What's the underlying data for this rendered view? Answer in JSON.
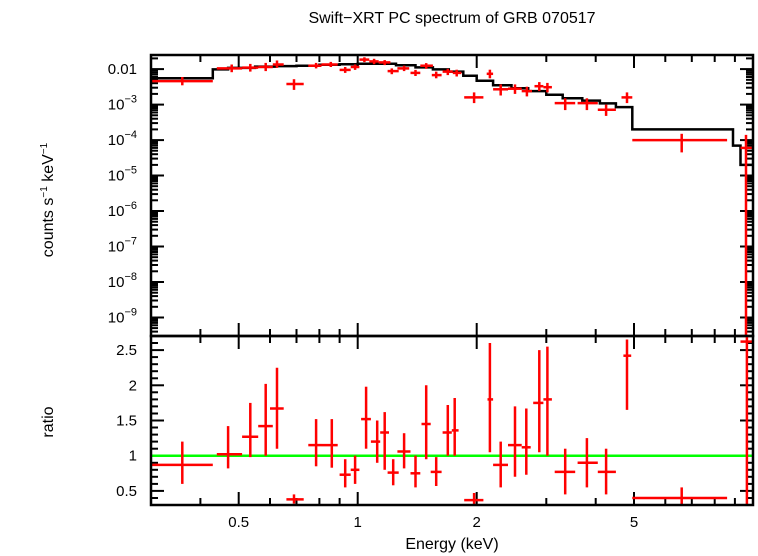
{
  "chart_data": {
    "type": "scatter",
    "title": "Swift−XRT PC spectrum of GRB 070517",
    "xlabel": "Energy (keV)",
    "x_scale": "log",
    "xlim": [
      0.3,
      10
    ],
    "x_ticks": [
      {
        "value": 0.5,
        "label": "0.5"
      },
      {
        "value": 1,
        "label": "1"
      },
      {
        "value": 2,
        "label": "2"
      },
      {
        "value": 5,
        "label": "5"
      }
    ],
    "colors": {
      "data": "#ff0000",
      "model": "#000000",
      "unity_line": "#00ff00"
    },
    "top_panel": {
      "ylabel_base": "counts s",
      "ylabel_sup1": "−1",
      "ylabel_mid": " keV",
      "ylabel_sup2": "−1",
      "y_scale": "log",
      "ylim": [
        3e-10,
        0.025
      ],
      "y_ticks": [
        {
          "value": 0.01,
          "base": "0.01",
          "sup": ""
        },
        {
          "value": 0.001,
          "base": "10",
          "sup": "−3"
        },
        {
          "value": 0.0001,
          "base": "10",
          "sup": "−4"
        },
        {
          "value": 1e-05,
          "base": "10",
          "sup": "−5"
        },
        {
          "value": 1e-06,
          "base": "10",
          "sup": "−6"
        },
        {
          "value": 1e-07,
          "base": "10",
          "sup": "−7"
        },
        {
          "value": 1e-08,
          "base": "10",
          "sup": "−8"
        },
        {
          "value": 1e-09,
          "base": "10",
          "sup": "−9"
        }
      ],
      "data": [
        {
          "x": 0.36,
          "xlo": 0.3,
          "xhi": 0.43,
          "y": 0.0046,
          "ylo": 0.0035,
          "yhi": 0.006
        },
        {
          "x": 0.48,
          "xlo": 0.44,
          "xhi": 0.51,
          "y": 0.0105,
          "ylo": 0.0082,
          "yhi": 0.0135
        },
        {
          "x": 0.535,
          "xlo": 0.51,
          "xhi": 0.56,
          "y": 0.011,
          "ylo": 0.0085,
          "yhi": 0.014
        },
        {
          "x": 0.585,
          "xlo": 0.56,
          "xhi": 0.61,
          "y": 0.0115,
          "ylo": 0.0088,
          "yhi": 0.015
        },
        {
          "x": 0.625,
          "xlo": 0.61,
          "xhi": 0.65,
          "y": 0.0135,
          "ylo": 0.0108,
          "yhi": 0.0175
        },
        {
          "x": 0.69,
          "xlo": 0.66,
          "xhi": 0.73,
          "y": 0.0038,
          "ylo": 0.0026,
          "yhi": 0.0052
        },
        {
          "x": 0.785,
          "xlo": 0.75,
          "xhi": 0.81,
          "y": 0.0125,
          "ylo": 0.0105,
          "yhi": 0.015
        },
        {
          "x": 0.855,
          "xlo": 0.81,
          "xhi": 0.89,
          "y": 0.0135,
          "ylo": 0.0115,
          "yhi": 0.016
        },
        {
          "x": 0.93,
          "xlo": 0.9,
          "xhi": 0.96,
          "y": 0.0095,
          "ylo": 0.0078,
          "yhi": 0.0115
        },
        {
          "x": 0.985,
          "xlo": 0.96,
          "xhi": 1.01,
          "y": 0.0115,
          "ylo": 0.0095,
          "yhi": 0.0135
        },
        {
          "x": 1.04,
          "xlo": 1.01,
          "xhi": 1.07,
          "y": 0.0185,
          "ylo": 0.0158,
          "yhi": 0.0215
        },
        {
          "x": 1.1,
          "xlo": 1.07,
          "xhi": 1.13,
          "y": 0.0165,
          "ylo": 0.0138,
          "yhi": 0.0195
        },
        {
          "x": 1.17,
          "xlo": 1.13,
          "xhi": 1.21,
          "y": 0.0155,
          "ylo": 0.013,
          "yhi": 0.018
        },
        {
          "x": 1.22,
          "xlo": 1.19,
          "xhi": 1.27,
          "y": 0.0088,
          "ylo": 0.0072,
          "yhi": 0.0105
        },
        {
          "x": 1.31,
          "xlo": 1.26,
          "xhi": 1.35,
          "y": 0.0105,
          "ylo": 0.0088,
          "yhi": 0.0125
        },
        {
          "x": 1.4,
          "xlo": 1.36,
          "xhi": 1.44,
          "y": 0.0078,
          "ylo": 0.0064,
          "yhi": 0.0095
        },
        {
          "x": 1.49,
          "xlo": 1.44,
          "xhi": 1.55,
          "y": 0.0125,
          "ylo": 0.0102,
          "yhi": 0.0148
        },
        {
          "x": 1.58,
          "xlo": 1.54,
          "xhi": 1.63,
          "y": 0.0068,
          "ylo": 0.0055,
          "yhi": 0.0085
        },
        {
          "x": 1.69,
          "xlo": 1.64,
          "xhi": 1.74,
          "y": 0.0085,
          "ylo": 0.0068,
          "yhi": 0.0102
        },
        {
          "x": 1.78,
          "xlo": 1.74,
          "xhi": 1.83,
          "y": 0.0078,
          "ylo": 0.0062,
          "yhi": 0.0096
        },
        {
          "x": 1.97,
          "xlo": 1.86,
          "xhi": 2.08,
          "y": 0.0016,
          "ylo": 0.0011,
          "yhi": 0.0022
        },
        {
          "x": 2.16,
          "xlo": 2.12,
          "xhi": 2.2,
          "y": 0.0074,
          "ylo": 0.0055,
          "yhi": 0.0096
        },
        {
          "x": 2.3,
          "xlo": 2.2,
          "xhi": 2.4,
          "y": 0.0027,
          "ylo": 0.0018,
          "yhi": 0.0037
        },
        {
          "x": 2.5,
          "xlo": 2.4,
          "xhi": 2.6,
          "y": 0.0028,
          "ylo": 0.002,
          "yhi": 0.0037
        },
        {
          "x": 2.68,
          "xlo": 2.6,
          "xhi": 2.76,
          "y": 0.0024,
          "ylo": 0.0017,
          "yhi": 0.0032
        },
        {
          "x": 2.88,
          "xlo": 2.8,
          "xhi": 2.95,
          "y": 0.0033,
          "ylo": 0.0024,
          "yhi": 0.0043
        },
        {
          "x": 3.02,
          "xlo": 2.95,
          "xhi": 3.1,
          "y": 0.0031,
          "ylo": 0.0022,
          "yhi": 0.0041
        },
        {
          "x": 3.35,
          "xlo": 3.15,
          "xhi": 3.55,
          "y": 0.0011,
          "ylo": 0.0007,
          "yhi": 0.0015
        },
        {
          "x": 3.8,
          "xlo": 3.6,
          "xhi": 4.05,
          "y": 0.0011,
          "ylo": 0.0007,
          "yhi": 0.0015
        },
        {
          "x": 4.25,
          "xlo": 4.05,
          "xhi": 4.5,
          "y": 0.00072,
          "ylo": 0.00048,
          "yhi": 0.001
        },
        {
          "x": 4.8,
          "xlo": 4.65,
          "xhi": 4.95,
          "y": 0.0016,
          "ylo": 0.0011,
          "yhi": 0.0022
        },
        {
          "x": 6.6,
          "xlo": 4.95,
          "xhi": 8.6,
          "y": 0.0001,
          "ylo": 4.5e-05,
          "yhi": 0.00015
        },
        {
          "x": 9.6,
          "xlo": 9.3,
          "xhi": 10,
          "y": 6e-05,
          "ylo": 1e-10,
          "yhi": 0.00014
        }
      ],
      "model": {
        "edges": [
          0.3,
          0.43,
          0.47,
          0.55,
          0.62,
          0.7,
          0.8,
          0.9,
          1.0,
          1.1,
          1.25,
          1.4,
          1.55,
          1.7,
          1.85,
          2.0,
          2.2,
          2.45,
          2.7,
          3.0,
          3.3,
          3.7,
          4.1,
          4.5,
          4.95,
          8.9,
          9.3,
          10
        ],
        "values": [
          0.0055,
          0.0098,
          0.0108,
          0.0118,
          0.0122,
          0.0125,
          0.0132,
          0.0138,
          0.0142,
          0.0142,
          0.0128,
          0.0112,
          0.0098,
          0.0085,
          0.0065,
          0.0047,
          0.0035,
          0.0029,
          0.0024,
          0.0019,
          0.0015,
          0.0013,
          0.00108,
          0.00085,
          0.0002,
          7e-05,
          2e-05
        ]
      }
    },
    "bottom_panel": {
      "ylabel": "ratio",
      "y_scale": "linear",
      "ylim": [
        0.3,
        2.7
      ],
      "y_ticks": [
        {
          "value": 0.5,
          "label": "0.5"
        },
        {
          "value": 1,
          "label": "1"
        },
        {
          "value": 1.5,
          "label": "1.5"
        },
        {
          "value": 2,
          "label": "2"
        },
        {
          "value": 2.5,
          "label": "2.5"
        }
      ],
      "unity_value": 1,
      "data": [
        {
          "x": 0.36,
          "xlo": 0.3,
          "xhi": 0.43,
          "y": 0.87,
          "ylo": 0.6,
          "yhi": 1.2
        },
        {
          "x": 0.47,
          "xlo": 0.44,
          "xhi": 0.51,
          "y": 1.02,
          "ylo": 0.82,
          "yhi": 1.42
        },
        {
          "x": 0.535,
          "xlo": 0.51,
          "xhi": 0.56,
          "y": 1.27,
          "ylo": 0.98,
          "yhi": 1.75
        },
        {
          "x": 0.585,
          "xlo": 0.56,
          "xhi": 0.61,
          "y": 1.42,
          "ylo": 1.0,
          "yhi": 2.02
        },
        {
          "x": 0.625,
          "xlo": 0.6,
          "xhi": 0.65,
          "y": 1.67,
          "ylo": 1.1,
          "yhi": 2.25
        },
        {
          "x": 0.69,
          "xlo": 0.66,
          "xhi": 0.73,
          "y": 0.38,
          "ylo": 0.32,
          "yhi": 0.45
        },
        {
          "x": 0.785,
          "xlo": 0.75,
          "xhi": 0.81,
          "y": 1.15,
          "ylo": 0.85,
          "yhi": 1.52
        },
        {
          "x": 0.86,
          "xlo": 0.81,
          "xhi": 0.89,
          "y": 1.15,
          "ylo": 0.83,
          "yhi": 1.52
        },
        {
          "x": 0.93,
          "xlo": 0.9,
          "xhi": 0.96,
          "y": 0.73,
          "ylo": 0.55,
          "yhi": 0.95
        },
        {
          "x": 0.985,
          "xlo": 0.96,
          "xhi": 1.01,
          "y": 0.8,
          "ylo": 0.6,
          "yhi": 1.0
        },
        {
          "x": 1.05,
          "xlo": 1.02,
          "xhi": 1.08,
          "y": 1.52,
          "ylo": 1.1,
          "yhi": 1.98
        },
        {
          "x": 1.12,
          "xlo": 1.08,
          "xhi": 1.14,
          "y": 1.2,
          "ylo": 0.9,
          "yhi": 1.5
        },
        {
          "x": 1.17,
          "xlo": 1.14,
          "xhi": 1.2,
          "y": 1.33,
          "ylo": 0.8,
          "yhi": 1.62
        },
        {
          "x": 1.23,
          "xlo": 1.19,
          "xhi": 1.27,
          "y": 0.76,
          "ylo": 0.58,
          "yhi": 0.95
        },
        {
          "x": 1.31,
          "xlo": 1.26,
          "xhi": 1.36,
          "y": 1.06,
          "ylo": 0.82,
          "yhi": 1.32
        },
        {
          "x": 1.4,
          "xlo": 1.36,
          "xhi": 1.44,
          "y": 0.75,
          "ylo": 0.55,
          "yhi": 1.0
        },
        {
          "x": 1.49,
          "xlo": 1.45,
          "xhi": 1.53,
          "y": 1.45,
          "ylo": 0.95,
          "yhi": 2.0
        },
        {
          "x": 1.58,
          "xlo": 1.53,
          "xhi": 1.63,
          "y": 0.77,
          "ylo": 0.57,
          "yhi": 0.98
        },
        {
          "x": 1.69,
          "xlo": 1.64,
          "xhi": 1.73,
          "y": 1.33,
          "ylo": 1.0,
          "yhi": 1.72
        },
        {
          "x": 1.76,
          "xlo": 1.73,
          "xhi": 1.8,
          "y": 1.36,
          "ylo": 1.0,
          "yhi": 1.82
        },
        {
          "x": 1.97,
          "xlo": 1.86,
          "xhi": 2.08,
          "y": 0.37,
          "ylo": 0.3,
          "yhi": 0.47
        },
        {
          "x": 2.16,
          "xlo": 2.13,
          "xhi": 2.2,
          "y": 1.8,
          "ylo": 1.05,
          "yhi": 2.6
        },
        {
          "x": 2.3,
          "xlo": 2.2,
          "xhi": 2.4,
          "y": 0.87,
          "ylo": 0.55,
          "yhi": 1.2
        },
        {
          "x": 2.5,
          "xlo": 2.4,
          "xhi": 2.6,
          "y": 1.15,
          "ylo": 0.7,
          "yhi": 1.7
        },
        {
          "x": 2.67,
          "xlo": 2.6,
          "xhi": 2.74,
          "y": 1.12,
          "ylo": 0.73,
          "yhi": 1.67
        },
        {
          "x": 2.88,
          "xlo": 2.78,
          "xhi": 2.95,
          "y": 1.75,
          "ylo": 1.05,
          "yhi": 2.5
        },
        {
          "x": 3.02,
          "xlo": 2.95,
          "xhi": 3.1,
          "y": 1.8,
          "ylo": 1.0,
          "yhi": 2.55
        },
        {
          "x": 3.35,
          "xlo": 3.15,
          "xhi": 3.55,
          "y": 0.77,
          "ylo": 0.45,
          "yhi": 1.1
        },
        {
          "x": 3.8,
          "xlo": 3.6,
          "xhi": 4.05,
          "y": 0.9,
          "ylo": 0.55,
          "yhi": 1.25
        },
        {
          "x": 4.25,
          "xlo": 4.05,
          "xhi": 4.5,
          "y": 0.77,
          "ylo": 0.45,
          "yhi": 1.1
        },
        {
          "x": 4.8,
          "xlo": 4.7,
          "xhi": 4.92,
          "y": 2.42,
          "ylo": 1.65,
          "yhi": 2.65
        },
        {
          "x": 6.6,
          "xlo": 4.95,
          "xhi": 8.6,
          "y": 0.4,
          "ylo": 0.3,
          "yhi": 0.55
        },
        {
          "x": 9.65,
          "xlo": 9.3,
          "xhi": 10,
          "y": 2.62,
          "ylo": 0.3,
          "yhi": 2.7
        }
      ]
    }
  }
}
